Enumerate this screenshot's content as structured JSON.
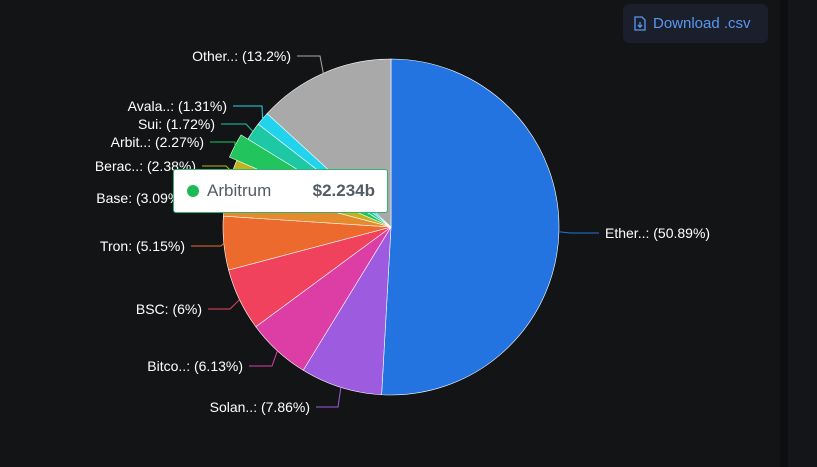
{
  "download": {
    "label": "Download .csv",
    "icon": "file-download-icon"
  },
  "chart_data": {
    "type": "pie",
    "slices": [
      {
        "label": "Ether..: (50.89%)",
        "value": 50.89,
        "color": "#2374e1"
      },
      {
        "label": "Solan..: (7.86%)",
        "value": 7.86,
        "color": "#9d5ce0"
      },
      {
        "label": "Bitco..: (6.13%)",
        "value": 6.13,
        "color": "#dd3ea6"
      },
      {
        "label": "BSC: (6%)",
        "value": 6.0,
        "color": "#f0425c"
      },
      {
        "label": "Tron: (5.15%)",
        "value": 5.15,
        "color": "#ec6a2d"
      },
      {
        "label": "Base: (3.09%)",
        "value": 3.09,
        "color": "#e68a2e"
      },
      {
        "label": "Berac..: (2.38%)",
        "value": 2.38,
        "color": "#c3b11f"
      },
      {
        "label": "Arbit..: (2.27%)",
        "value": 2.27,
        "color": "#22c45e"
      },
      {
        "label": "Sui: (1.72%)",
        "value": 1.72,
        "color": "#1fc8a4"
      },
      {
        "label": "Avala..: (1.31%)",
        "value": 1.31,
        "color": "#22d3ee"
      },
      {
        "label": "Other..: (13.2%)",
        "value": 13.2,
        "color": "#a9a9a9"
      }
    ]
  },
  "tooltip": {
    "name": "Arbitrum",
    "value": "$2.234b",
    "color": "#1db954"
  }
}
